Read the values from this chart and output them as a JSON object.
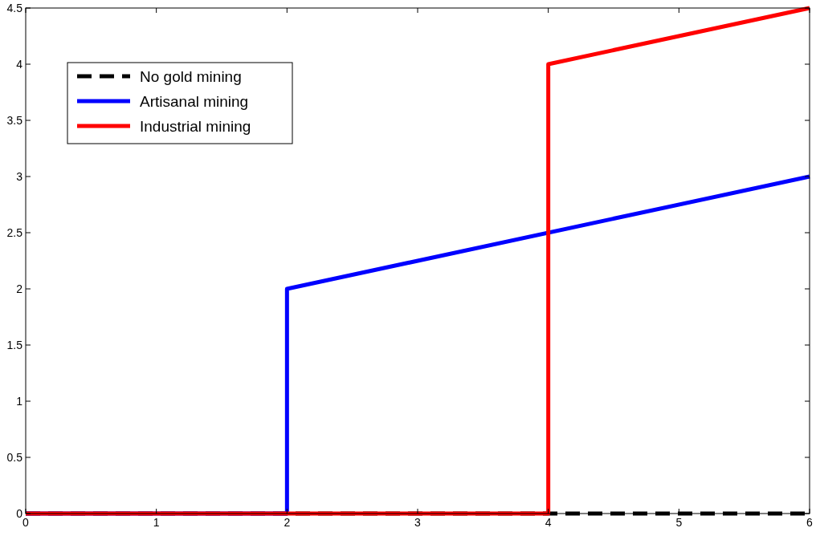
{
  "chart_data": {
    "type": "line",
    "xlim": [
      0,
      6
    ],
    "ylim": [
      0,
      4.5
    ],
    "xticks": [
      0,
      1,
      2,
      3,
      4,
      5,
      6
    ],
    "yticks": [
      0,
      0.5,
      1,
      1.5,
      2,
      2.5,
      3,
      3.5,
      4,
      4.5
    ],
    "grid": false,
    "legend": "top left",
    "series": [
      {
        "name": "No gold mining",
        "color": "#000000",
        "line_style": "dashed",
        "x": [
          0,
          6
        ],
        "values": [
          0,
          0
        ]
      },
      {
        "name": "Artisanal mining",
        "color": "#0000ff",
        "line_style": "solid",
        "x": [
          0,
          2,
          2,
          6
        ],
        "values": [
          0,
          0,
          2,
          3
        ]
      },
      {
        "name": "Industrial mining",
        "color": "#ff0000",
        "line_style": "solid",
        "x": [
          0,
          4,
          4,
          6
        ],
        "values": [
          0,
          0,
          4,
          4.5
        ]
      }
    ]
  }
}
